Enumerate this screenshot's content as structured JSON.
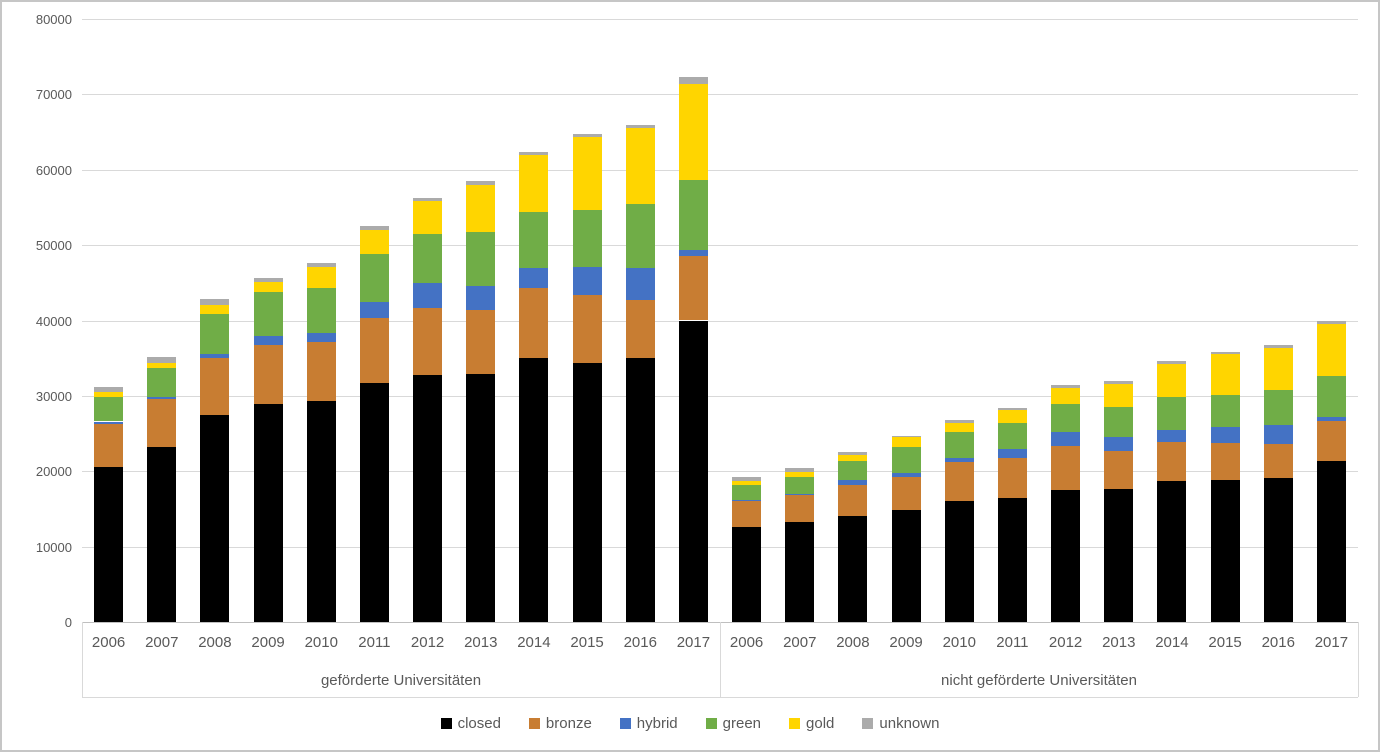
{
  "chart_data": {
    "type": "bar",
    "stacked": true,
    "title": "",
    "xlabel": "",
    "ylabel": "",
    "ylim": [
      0,
      80000
    ],
    "yticks": [
      0,
      10000,
      20000,
      30000,
      40000,
      50000,
      60000,
      70000,
      80000
    ],
    "grid": true,
    "legend_position": "bottom",
    "legend": [
      "closed",
      "bronze",
      "hybrid",
      "green",
      "gold",
      "unknown"
    ],
    "colors": {
      "closed": "#000000",
      "bronze": "#c87d32",
      "hybrid": "#4472c4",
      "green": "#70ad47",
      "gold": "#ffd500",
      "unknown": "#ababab"
    },
    "categories": [
      "2006",
      "2007",
      "2008",
      "2009",
      "2010",
      "2011",
      "2012",
      "2013",
      "2014",
      "2015",
      "2016",
      "2017"
    ],
    "groups": [
      {
        "label": "geförderte Universitäten",
        "series": [
          {
            "name": "closed",
            "values": [
              20600,
              23200,
              27400,
              28900,
              29300,
              31700,
              32800,
              32900,
              35000,
              34400,
              35000,
              40000
            ]
          },
          {
            "name": "bronze",
            "values": [
              5700,
              6400,
              7600,
              7900,
              7900,
              8600,
              8900,
              8500,
              9300,
              9000,
              7700,
              8500
            ]
          },
          {
            "name": "hybrid",
            "values": [
              300,
              300,
              600,
              1100,
              1200,
              2200,
              3300,
              3200,
              2600,
              3700,
              4300,
              800
            ]
          },
          {
            "name": "green",
            "values": [
              3300,
              3800,
              5300,
              5900,
              5900,
              6300,
              6500,
              7100,
              7500,
              7600,
              8500,
              9400
            ]
          },
          {
            "name": "gold",
            "values": [
              600,
              700,
              1200,
              1300,
              2800,
              3200,
              4300,
              6300,
              7600,
              9600,
              10000,
              12700
            ]
          },
          {
            "name": "unknown",
            "values": [
              700,
              700,
              700,
              500,
              500,
              500,
              500,
              500,
              400,
              400,
              400,
              900
            ]
          }
        ]
      },
      {
        "label": "nicht geförderte Universitäten",
        "series": [
          {
            "name": "closed",
            "values": [
              12600,
              13300,
              14100,
              14900,
              16100,
              16400,
              17500,
              17600,
              18700,
              18800,
              19100,
              21400
            ]
          },
          {
            "name": "bronze",
            "values": [
              3400,
              3500,
              4100,
              4300,
              5100,
              5300,
              5900,
              5100,
              5200,
              5000,
              4500,
              5300
            ]
          },
          {
            "name": "hybrid",
            "values": [
              200,
              200,
              600,
              600,
              600,
              1200,
              1800,
              1800,
              1600,
              2100,
              2600,
              500
            ]
          },
          {
            "name": "green",
            "values": [
              2000,
              2300,
              2500,
              3400,
              3400,
              3500,
              3700,
              4000,
              4300,
              4200,
              4600,
              5400
            ]
          },
          {
            "name": "gold",
            "values": [
              500,
              600,
              800,
              1300,
              1200,
              1700,
              2100,
              3100,
              4400,
              5400,
              5500,
              6900
            ]
          },
          {
            "name": "unknown",
            "values": [
              500,
              500,
              400,
              200,
              400,
              300,
              400,
              400,
              400,
              300,
              400,
              400
            ]
          }
        ]
      }
    ]
  }
}
